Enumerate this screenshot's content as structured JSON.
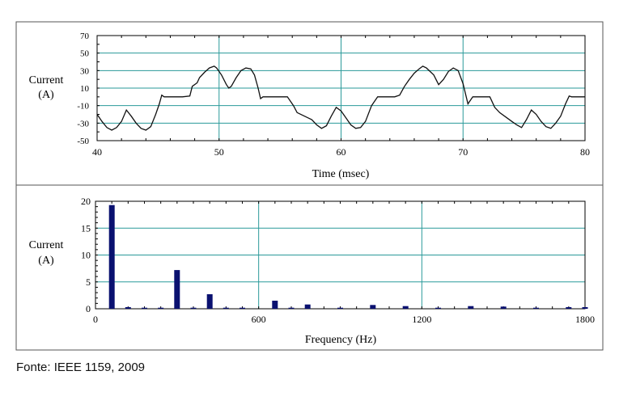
{
  "chart_data": [
    {
      "type": "line",
      "ylabel_line1": "Current",
      "ylabel_line2": "(A)",
      "xlabel": "Time (msec)",
      "xlim": [
        40,
        80
      ],
      "ylim": [
        -50,
        70
      ],
      "x_ticks": [
        "40",
        "50",
        "60",
        "70",
        "80"
      ],
      "y_ticks": [
        "70",
        "50",
        "30",
        "10",
        "-10",
        "-30",
        "-50"
      ],
      "grid": true,
      "series": [
        {
          "x": [
            40,
            40.4,
            40.8,
            41.2,
            41.6,
            42.0,
            42.4,
            42.8,
            43.2,
            43.6,
            44.0,
            44.4,
            44.8,
            45.1,
            45.3,
            45.5,
            46.0,
            46.5,
            47.0,
            47.6,
            47.8,
            48.2,
            48.4,
            48.8,
            49.2,
            49.6,
            49.8,
            50.2,
            50.6,
            50.8,
            51.0,
            51.4,
            51.8,
            52.2,
            52.6,
            52.9,
            53.2,
            53.4,
            53.6,
            54.0,
            54.5,
            55.0,
            55.6,
            56.1,
            56.4,
            57.0,
            57.6,
            58.0,
            58.4,
            58.8,
            59.2,
            59.6,
            60.0,
            60.4,
            60.8,
            61.2,
            61.6,
            62.0,
            62.5,
            63.0,
            63.6,
            64.4,
            64.8,
            65.2,
            65.6,
            66.0,
            66.4,
            66.7,
            67.0,
            67.6,
            68.0,
            68.4,
            68.8,
            69.2,
            69.6,
            70.0,
            70.4,
            70.8,
            71.5,
            72.2,
            72.6,
            73.0,
            73.6,
            74.0,
            74.4,
            74.8,
            75.2,
            75.6,
            76.0,
            76.4,
            76.8,
            77.2,
            77.6,
            78.0,
            78.4,
            78.7,
            78.9,
            79.1,
            79.4,
            80.0
          ],
          "y": [
            -20,
            -28,
            -35,
            -38,
            -35,
            -28,
            -15,
            -22,
            -30,
            -36,
            -38,
            -34,
            -20,
            -8,
            2,
            0,
            0,
            0,
            0,
            1,
            12,
            16,
            22,
            28,
            33,
            35,
            33,
            25,
            14,
            10,
            12,
            22,
            30,
            33,
            32,
            25,
            10,
            -2,
            0,
            0,
            0,
            0,
            0,
            -10,
            -18,
            -22,
            -26,
            -32,
            -36,
            -33,
            -22,
            -12,
            -16,
            -24,
            -32,
            -36,
            -35,
            -28,
            -10,
            0,
            0,
            0,
            2,
            12,
            20,
            27,
            32,
            35,
            33,
            25,
            14,
            20,
            29,
            33,
            30,
            15,
            -8,
            0,
            0,
            0,
            -12,
            -18,
            -24,
            -28,
            -32,
            -35,
            -26,
            -15,
            -20,
            -28,
            -34,
            -36,
            -30,
            -22,
            -8,
            1,
            0,
            0,
            0,
            0
          ]
        }
      ]
    },
    {
      "type": "bar",
      "ylabel_line1": "Current",
      "ylabel_line2": "(A)",
      "xlabel": "Frequency (Hz)",
      "xlim": [
        0,
        1800
      ],
      "ylim": [
        0,
        20
      ],
      "x_ticks": [
        "0",
        "600",
        "1200",
        "1800"
      ],
      "y_ticks": [
        "20",
        "15",
        "10",
        "5",
        "0"
      ],
      "grid": true,
      "x": [
        60,
        120,
        180,
        240,
        300,
        360,
        420,
        480,
        540,
        660,
        720,
        780,
        900,
        1020,
        1140,
        1260,
        1380,
        1500,
        1620,
        1740,
        1800
      ],
      "values": [
        19.3,
        0.3,
        0.2,
        0.2,
        7.2,
        0.2,
        2.7,
        0.2,
        0.2,
        1.5,
        0.2,
        0.8,
        0.2,
        0.7,
        0.5,
        0.2,
        0.5,
        0.4,
        0.2,
        0.3,
        0.3
      ],
      "colors": {
        "bar": "#0a1170",
        "grid": "#2a9a9a"
      }
    }
  ],
  "source_caption": "Fonte: IEEE 1159, 2009"
}
